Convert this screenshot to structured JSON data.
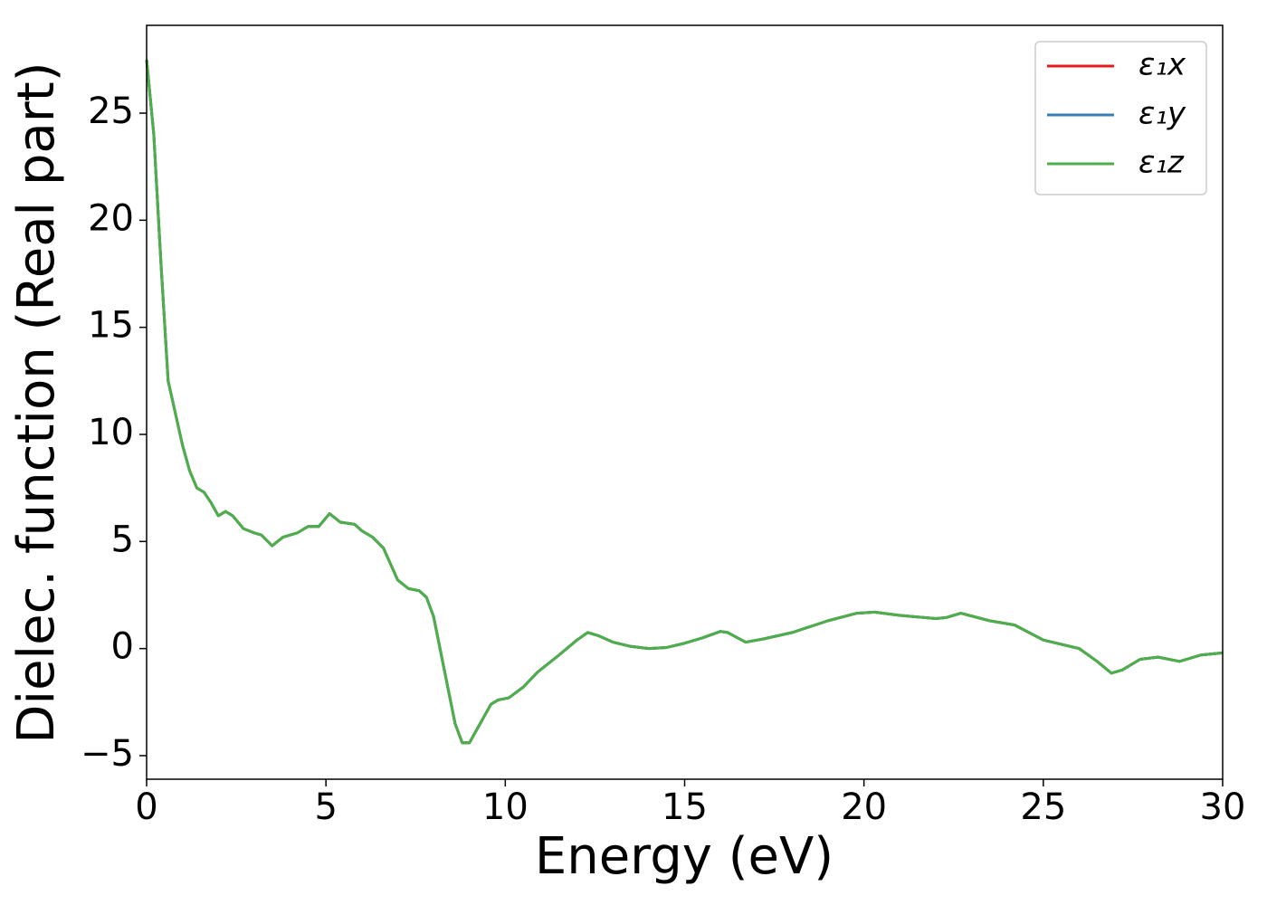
{
  "chart_data": {
    "type": "line",
    "xlabel": "Energy (eV)",
    "ylabel": "Dielec. function (Real part)",
    "xlim": [
      0,
      30
    ],
    "ylim": [
      -6.1,
      29.1
    ],
    "xticks": [
      0,
      5,
      10,
      15,
      20,
      25,
      30
    ],
    "yticks": [
      {
        "value": -5,
        "label": "−5"
      },
      0,
      5,
      10,
      15,
      20,
      25
    ],
    "legend": "upper right",
    "x": [
      0,
      0.2,
      0.4,
      0.6,
      0.8,
      1.0,
      1.2,
      1.4,
      1.6,
      1.8,
      2.0,
      2.2,
      2.4,
      2.7,
      3.0,
      3.2,
      3.5,
      3.8,
      4.2,
      4.5,
      4.8,
      5.1,
      5.4,
      5.8,
      6.0,
      6.3,
      6.6,
      7.0,
      7.3,
      7.6,
      7.8,
      8.0,
      8.3,
      8.6,
      8.8,
      9.0,
      9.3,
      9.6,
      9.8,
      10.1,
      10.5,
      10.9,
      11.5,
      12.0,
      12.3,
      12.6,
      13.0,
      13.5,
      14.0,
      14.5,
      15.0,
      15.5,
      16.0,
      16.2,
      16.7,
      17.2,
      18.0,
      19.0,
      19.8,
      20.3,
      21.0,
      22.0,
      22.3,
      22.7,
      23.5,
      24.2,
      25.0,
      25.5,
      26.0,
      26.5,
      26.9,
      27.2,
      27.7,
      28.2,
      28.8,
      29.4,
      30.0
    ],
    "series": [
      {
        "name": "ε₁x",
        "color": "#e41a1c",
        "values": [
          27.5,
          24,
          18,
          12.5,
          11,
          9.5,
          8.3,
          7.5,
          7.3,
          6.8,
          6.2,
          6.4,
          6.2,
          5.6,
          5.4,
          5.3,
          4.8,
          5.2,
          5.4,
          5.7,
          5.7,
          6.3,
          5.9,
          5.8,
          5.5,
          5.2,
          4.7,
          3.2,
          2.8,
          2.7,
          2.4,
          1.5,
          -1.0,
          -3.5,
          -4.4,
          -4.4,
          -3.5,
          -2.6,
          -2.4,
          -2.3,
          -1.8,
          -1.1,
          -0.3,
          0.4,
          0.75,
          0.6,
          0.3,
          0.1,
          0.0,
          0.05,
          0.25,
          0.5,
          0.8,
          0.75,
          0.3,
          0.45,
          0.75,
          1.3,
          1.65,
          1.7,
          1.55,
          1.4,
          1.45,
          1.65,
          1.3,
          1.1,
          0.4,
          0.2,
          0.0,
          -0.6,
          -1.15,
          -1.0,
          -0.5,
          -0.4,
          -0.6,
          -0.3,
          -0.2
        ]
      },
      {
        "name": "ε₁y",
        "color": "#377eb8",
        "values": [
          27.5,
          24,
          18,
          12.5,
          11,
          9.5,
          8.3,
          7.5,
          7.3,
          6.8,
          6.2,
          6.4,
          6.2,
          5.6,
          5.4,
          5.3,
          4.8,
          5.2,
          5.4,
          5.7,
          5.7,
          6.3,
          5.9,
          5.8,
          5.5,
          5.2,
          4.7,
          3.2,
          2.8,
          2.7,
          2.4,
          1.5,
          -1.0,
          -3.5,
          -4.4,
          -4.4,
          -3.5,
          -2.6,
          -2.4,
          -2.3,
          -1.8,
          -1.1,
          -0.3,
          0.4,
          0.75,
          0.6,
          0.3,
          0.1,
          0.0,
          0.05,
          0.25,
          0.5,
          0.8,
          0.75,
          0.3,
          0.45,
          0.75,
          1.3,
          1.65,
          1.7,
          1.55,
          1.4,
          1.45,
          1.65,
          1.3,
          1.1,
          0.4,
          0.2,
          0.0,
          -0.6,
          -1.15,
          -1.0,
          -0.5,
          -0.4,
          -0.6,
          -0.3,
          -0.2
        ]
      },
      {
        "name": "ε₁z",
        "color": "#4daf4a",
        "values": [
          27.5,
          24,
          18,
          12.5,
          11,
          9.5,
          8.3,
          7.5,
          7.3,
          6.8,
          6.2,
          6.4,
          6.2,
          5.6,
          5.4,
          5.3,
          4.8,
          5.2,
          5.4,
          5.7,
          5.7,
          6.3,
          5.9,
          5.8,
          5.5,
          5.2,
          4.7,
          3.2,
          2.8,
          2.7,
          2.4,
          1.5,
          -1.0,
          -3.5,
          -4.4,
          -4.4,
          -3.5,
          -2.6,
          -2.4,
          -2.3,
          -1.8,
          -1.1,
          -0.3,
          0.4,
          0.75,
          0.6,
          0.3,
          0.1,
          0.0,
          0.05,
          0.25,
          0.5,
          0.8,
          0.75,
          0.3,
          0.45,
          0.75,
          1.3,
          1.65,
          1.7,
          1.55,
          1.4,
          1.45,
          1.65,
          1.3,
          1.1,
          0.4,
          0.2,
          0.0,
          -0.6,
          -1.15,
          -1.0,
          -0.5,
          -0.4,
          -0.6,
          -0.3,
          -0.2
        ]
      }
    ]
  }
}
